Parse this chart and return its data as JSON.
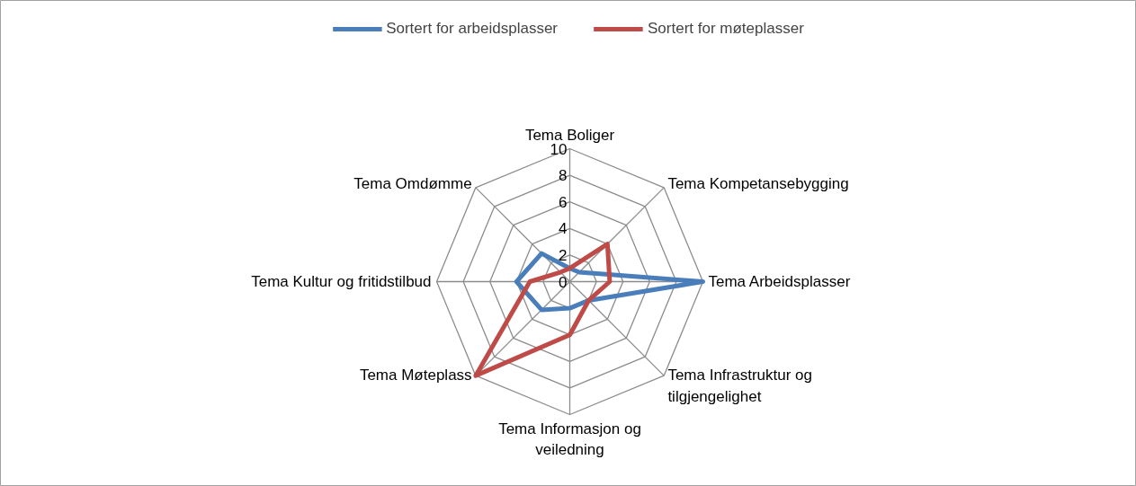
{
  "chart_data": {
    "type": "radar",
    "categories": [
      "Tema Boliger",
      "Tema Kompetansebygging",
      "Tema Arbeidsplasser",
      "Tema Infrastruktur og\ntilgjengelighet",
      "Tema Informasjon og\nveiledning",
      "Tema Møteplass",
      "Tema Kultur og fritidstilbud",
      "Tema Omdømme"
    ],
    "series": [
      {
        "name": "Sortert for arbeidsplasser",
        "color": "#4a7ebb",
        "values": [
          1,
          1,
          10,
          2,
          2,
          3,
          4,
          3
        ]
      },
      {
        "name": "Sortert for møteplasser",
        "color": "#be4b48",
        "values": [
          1,
          4,
          3,
          2,
          4,
          10,
          3,
          1
        ]
      }
    ],
    "ylim": [
      0,
      10
    ],
    "yticks": [
      0,
      2,
      4,
      6,
      8,
      10
    ],
    "grid": true,
    "legend": "top",
    "marker": "none",
    "line_style": "solid"
  }
}
